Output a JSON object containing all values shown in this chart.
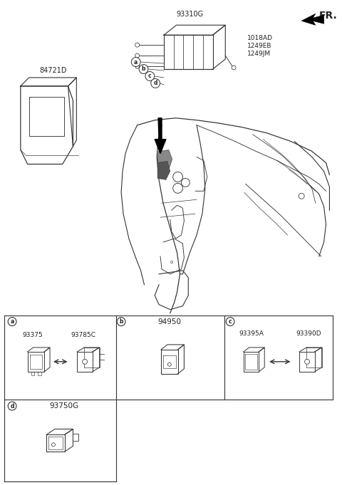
{
  "bg_color": "#ffffff",
  "fig_width": 4.8,
  "fig_height": 6.81,
  "dpi": 100,
  "fr_label": "FR.",
  "part_93310G": "93310G",
  "part_84721D": "84721D",
  "part_1018AD": "1018AD",
  "part_1249EB": "1249EB",
  "part_1249JM": "1249JM",
  "box_a_part1": "93375",
  "box_a_part2": "93785C",
  "box_b_part": "94950",
  "box_c_part1": "93395A",
  "box_c_part2": "93390D",
  "box_d_part": "93750G",
  "lc": "#333333",
  "tc": "#222222",
  "lw_main": 0.8,
  "lw_thick": 1.2
}
